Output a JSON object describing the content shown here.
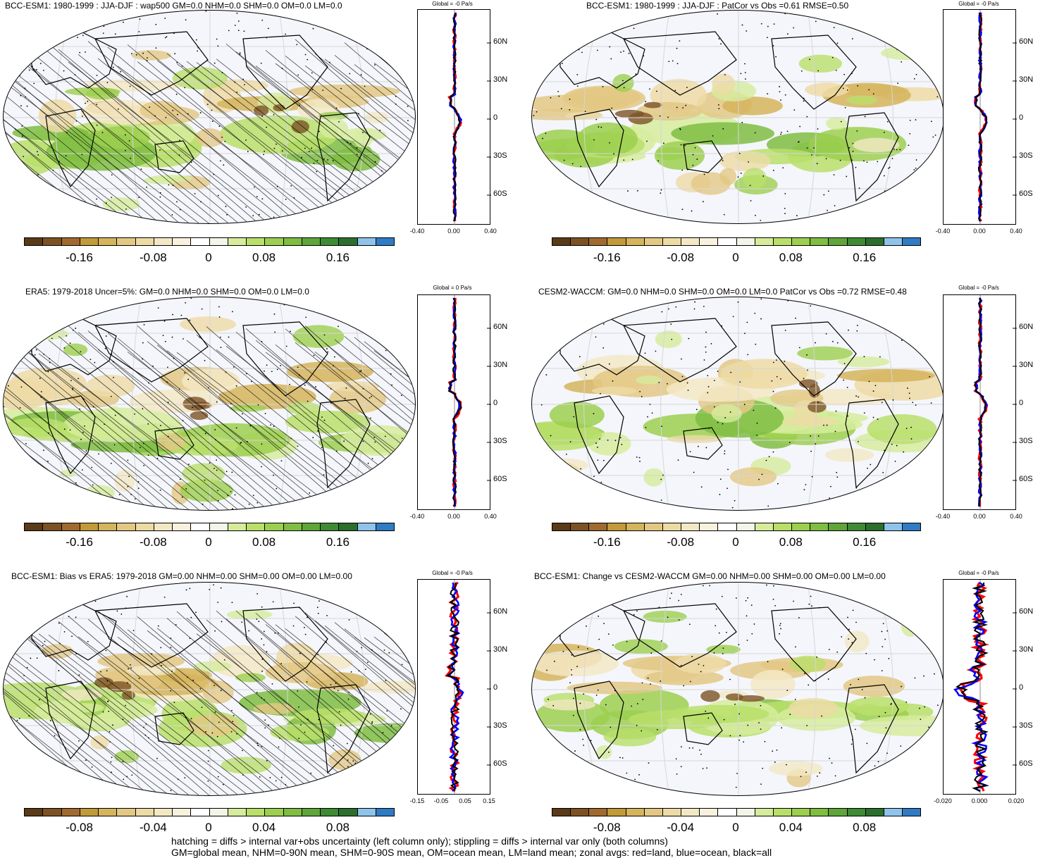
{
  "panels": [
    {
      "title": "BCC-ESM1: 1980-1999 : JJA-DJF : wap500 GM=0.0 NHM=0.0 SHM=0.0 OM=0.0 LM=0.0",
      "zonal_title": "Global = -0 Pa/s",
      "zonal_ticks": [
        "-0.40",
        "0.00",
        "0.40"
      ],
      "cbar_labels": [
        "-0.16",
        "-0.08",
        "0",
        "0.08",
        "0.16"
      ],
      "hatched": true
    },
    {
      "title": "BCC-ESM1: 1980-1999 : JJA-DJF : PatCor vs Obs =0.61 RMSE=0.50",
      "zonal_title": "Global = -0 Pa/s",
      "zonal_ticks": [
        "-0.40",
        "0.00",
        "0.40"
      ],
      "cbar_labels": [
        "-0.16",
        "-0.08",
        "0",
        "0.08",
        "0.16"
      ],
      "hatched": false
    },
    {
      "title": "ERA5: 1979-2018 Uncer=5%: GM=0.0 NHM=0.0 SHM=0.0 OM=0.0 LM=0.0",
      "zonal_title": "Global = 0 Pa/s",
      "zonal_ticks": [
        "-0.40",
        "0.00",
        "0.40"
      ],
      "cbar_labels": [
        "-0.16",
        "-0.08",
        "0",
        "0.08",
        "0.16"
      ],
      "hatched": true
    },
    {
      "title": "CESM2-WACCM: GM=0.0 NHM=0.0 SHM=0.0 OM=0.0 LM=0.0 PatCor vs Obs =0.72 RMSE=0.48",
      "zonal_title": "Global = -0 Pa/s",
      "zonal_ticks": [
        "-0.40",
        "0.00",
        "0.40"
      ],
      "cbar_labels": [
        "-0.16",
        "-0.08",
        "0",
        "0.08",
        "0.16"
      ],
      "hatched": false
    },
    {
      "title": "BCC-ESM1: Bias vs ERA5: 1979-2018 GM=0.00 NHM=0.00 SHM=0.00 OM=0.00 LM=0.00",
      "zonal_title": "Global = -0 Pa/s",
      "zonal_ticks": [
        "-0.15",
        "-0.05",
        "0.05",
        "0.15"
      ],
      "cbar_labels": [
        "-0.08",
        "-0.04",
        "0",
        "0.04",
        "0.08"
      ],
      "hatched": true
    },
    {
      "title": "BCC-ESM1: Change vs CESM2-WACCM GM=0.00 NHM=0.00 SHM=0.00 OM=0.00 LM=0.00",
      "zonal_title": "Global = -0 Pa/s",
      "zonal_ticks": [
        "-0.020",
        "0.000",
        "0.020"
      ],
      "cbar_labels": [
        "-0.08",
        "-0.04",
        "0",
        "0.04",
        "0.08"
      ],
      "hatched": false
    }
  ],
  "lat_labels": [
    "60N",
    "30N",
    "0",
    "30S",
    "60S"
  ],
  "colorbar_colors": [
    "#5a3a17",
    "#7c5225",
    "#a06a2e",
    "#c19a3a",
    "#d5b45c",
    "#e3c884",
    "#eddba6",
    "#f3e8c4",
    "#f7f1de",
    "#ffffff",
    "#f2f5e8",
    "#d6ec9c",
    "#b9df6a",
    "#9ccf4f",
    "#7fbd43",
    "#5fa53a",
    "#3f8a34",
    "#2b6e2e",
    "#8fc3ea",
    "#2f7bc4"
  ],
  "zonal_line_colors": {
    "land": "#ff0000",
    "ocean": "#0000ff",
    "all": "#000000"
  },
  "footnote": {
    "line1": "hatching = diffs > internal var+obs uncertainty (left column only); stippling = diffs > internal var only (both columns)",
    "line2": "GM=global mean, NHM=0-90N mean, SHM=0-90S mean, OM=ocean mean, LM=land mean; zonal avgs: red=land, blue=ocean, black=all"
  }
}
